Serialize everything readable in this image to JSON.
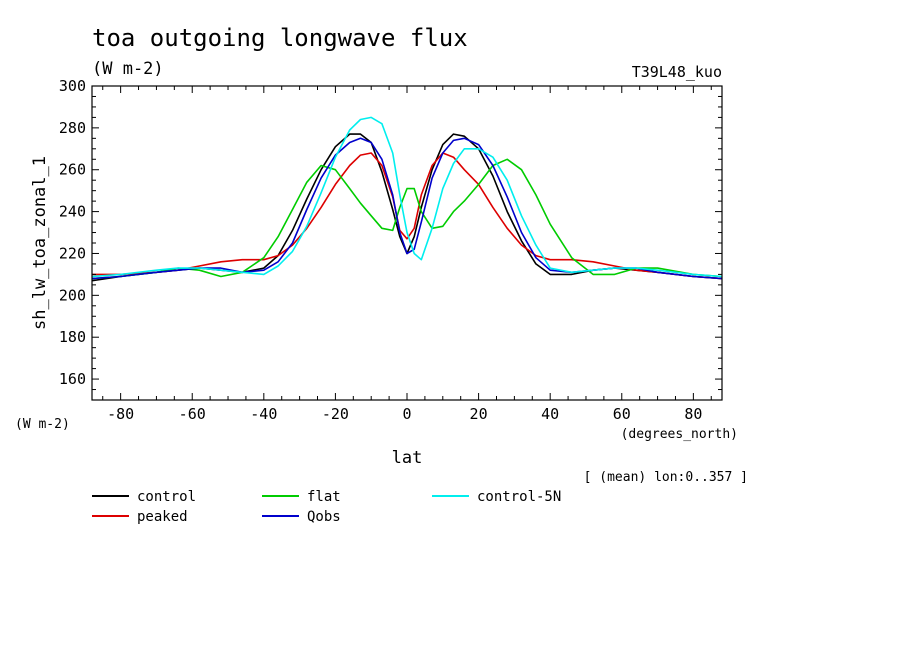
{
  "chart_data": {
    "type": "line",
    "title": "toa outgoing longwave flux",
    "units": "(W m-2)",
    "tag": "T39L48_kuo",
    "ylabel": "sh_lw_toa_zonal_1",
    "ylabel_units": "(W m-2)",
    "xlabel": "lat",
    "xlabel_units": "(degrees_north)",
    "note": "[ (mean) lon:0..357 ]",
    "xlim": [
      -88,
      88
    ],
    "ylim": [
      150,
      300
    ],
    "xticks": [
      -80,
      -60,
      -40,
      -20,
      0,
      20,
      40,
      60,
      80
    ],
    "yticks": [
      160,
      180,
      200,
      220,
      240,
      260,
      280,
      300
    ],
    "grid": false,
    "legend_position": "bottom-left",
    "x": [
      -88,
      -80,
      -70,
      -64,
      -58,
      -52,
      -46,
      -40,
      -36,
      -32,
      -28,
      -24,
      -20,
      -16,
      -13,
      -10,
      -7,
      -4,
      -2,
      0,
      2,
      4,
      7,
      10,
      13,
      16,
      20,
      24,
      28,
      32,
      36,
      40,
      46,
      52,
      58,
      64,
      70,
      80,
      88
    ],
    "series": [
      {
        "name": "control",
        "color": "#000000",
        "values": [
          207,
          209,
          211,
          212,
          213,
          212,
          211,
          213,
          219,
          231,
          246,
          260,
          271,
          277,
          277,
          273,
          259,
          241,
          228,
          220,
          228,
          242,
          260,
          272,
          277,
          276,
          270,
          257,
          240,
          226,
          215,
          210,
          210,
          212,
          213,
          212,
          211,
          209,
          208
        ]
      },
      {
        "name": "peaked",
        "color": "#dd0000",
        "values": [
          210,
          210,
          211,
          212,
          214,
          216,
          217,
          217,
          219,
          224,
          232,
          242,
          253,
          262,
          267,
          268,
          262,
          247,
          231,
          227,
          232,
          248,
          262,
          268,
          266,
          260,
          253,
          242,
          232,
          224,
          219,
          217,
          217,
          216,
          214,
          212,
          211,
          209,
          208
        ]
      },
      {
        "name": "flat",
        "color": "#00cc00",
        "values": [
          208,
          209,
          211,
          213,
          212,
          209,
          211,
          218,
          228,
          241,
          254,
          262,
          260,
          251,
          244,
          238,
          232,
          231,
          242,
          251,
          251,
          240,
          232,
          233,
          240,
          245,
          253,
          262,
          265,
          260,
          248,
          234,
          218,
          210,
          210,
          213,
          213,
          210,
          209
        ]
      },
      {
        "name": "Qobs",
        "color": "#0000cc",
        "values": [
          208,
          209,
          211,
          212,
          213,
          213,
          211,
          212,
          216,
          225,
          241,
          256,
          267,
          273,
          275,
          273,
          265,
          248,
          230,
          220,
          222,
          235,
          256,
          268,
          274,
          275,
          272,
          262,
          247,
          230,
          218,
          212,
          211,
          212,
          213,
          213,
          211,
          209,
          208
        ]
      },
      {
        "name": "control-5N",
        "color": "#00eeee",
        "values": [
          209,
          210,
          212,
          213,
          213,
          212,
          211,
          210,
          214,
          221,
          233,
          249,
          266,
          279,
          284,
          285,
          282,
          268,
          248,
          230,
          220,
          217,
          232,
          251,
          263,
          270,
          270,
          266,
          255,
          238,
          224,
          213,
          211,
          212,
          213,
          213,
          212,
          210,
          209
        ]
      }
    ]
  }
}
